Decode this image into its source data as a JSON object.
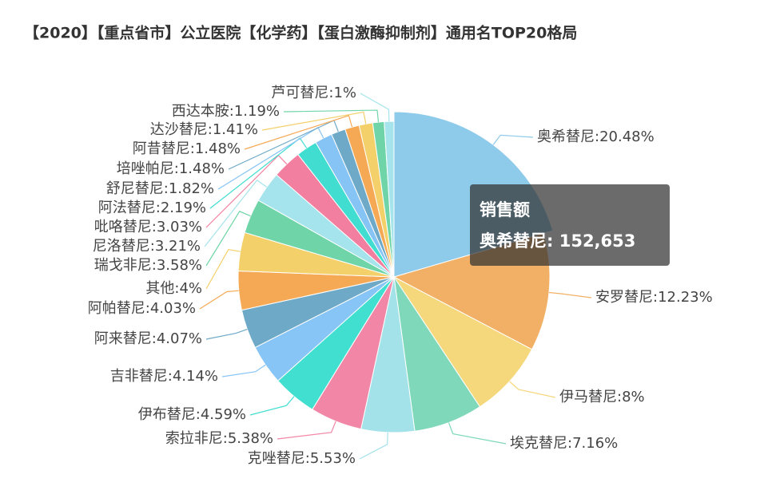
{
  "chart_data": {
    "type": "pie",
    "title": "【2020】【重点省市】公立医院【化学药】【蛋白激酶抑制剂】通用名TOP20格局",
    "categories": [
      "奥希替尼",
      "安罗替尼",
      "伊马替尼",
      "埃克替尼",
      "克唑替尼",
      "索拉非尼",
      "伊布替尼",
      "吉非替尼",
      "阿来替尼",
      "阿帕替尼",
      "其他",
      "瑞戈非尼",
      "尼洛替尼",
      "吡咯替尼",
      "阿法替尼",
      "舒尼替尼",
      "培唑帕尼",
      "阿昔替尼",
      "达沙替尼",
      "西达本胺",
      "芦可替尼"
    ],
    "values": [
      20.48,
      12.23,
      8,
      7.16,
      5.53,
      5.38,
      4.59,
      4.14,
      4.07,
      4.03,
      4,
      3.58,
      3.21,
      3.03,
      2.19,
      1.82,
      1.48,
      1.48,
      1.41,
      1.19,
      1
    ],
    "value_labels": [
      "20.48%",
      "12.23%",
      "8%",
      "7.16%",
      "5.53%",
      "5.38%",
      "4.59%",
      "4.14%",
      "4.07%",
      "4.03%",
      "4%",
      "3.58%",
      "3.21%",
      "3.03%",
      "2.19%",
      "1.82%",
      "1.48%",
      "1.48%",
      "1.41%",
      "1.19%",
      "1%"
    ],
    "label_separator": ":",
    "colors": [
      "#8ecaea",
      "#f2b066",
      "#f5d77c",
      "#7ed8b9",
      "#a4e2ea",
      "#f286a6",
      "#40dfd0",
      "#88c5f7",
      "#6ea9c8",
      "#f5a955",
      "#f4d06a",
      "#6fd5a8",
      "#a5e4ec",
      "#f27fa0",
      "#40ddd0",
      "#86c4f6",
      "#6ea9c8",
      "#f5a955",
      "#f4d06a",
      "#6fd5a8",
      "#a5e4ec"
    ],
    "tooltip": {
      "series_name": "销售额",
      "name": "奥希替尼",
      "separator": ": ",
      "value": {
        "value": 152653,
        "label": "152,653"
      }
    }
  }
}
